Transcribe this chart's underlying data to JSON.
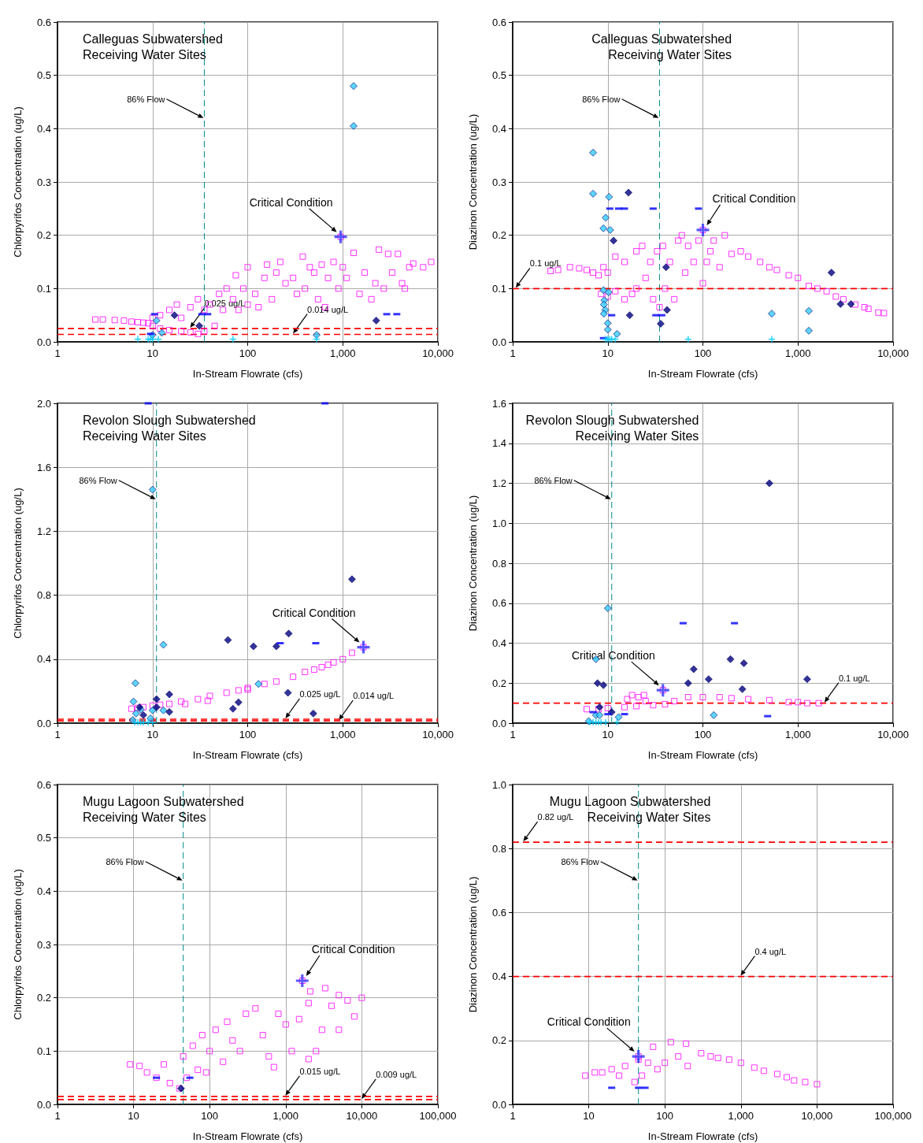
{
  "chart_data": [
    {
      "type": "scatter",
      "title": "Calleguas Subwatershed",
      "subtitle": "Receiving Water Sites",
      "xlabel": "In-Stream Flowrate (cfs)",
      "ylabel": "Chlorpyrifos Concentration (ug/L)",
      "log": "x",
      "xlim": [
        1,
        10000
      ],
      "xticks": [
        1,
        10,
        100,
        {
          "value": 1000,
          "label": "1,000"
        },
        {
          "value": 10000,
          "label": "10,000"
        }
      ],
      "ylim": [
        0,
        0.6
      ],
      "yticks": [
        {
          "value": 0,
          "label": "0.0"
        },
        0.1,
        0.2,
        0.3,
        0.4,
        0.5,
        0.6
      ],
      "grid": true,
      "series": [
        {
          "color": "#ff00ff",
          "marker": "square",
          "x": [
            2.5,
            3,
            4,
            5,
            6,
            7,
            8,
            9,
            10,
            10,
            12,
            12,
            15,
            15,
            18,
            20,
            20,
            25,
            25,
            30,
            30,
            35,
            35,
            40,
            45,
            50,
            55,
            60,
            70,
            75,
            80,
            90,
            100,
            100,
            120,
            130,
            150,
            160,
            180,
            200,
            220,
            250,
            300,
            330,
            380,
            400,
            450,
            500,
            550,
            600,
            650,
            700,
            800,
            900,
            950,
            1000,
            1100,
            1300,
            1500,
            1700,
            2000,
            2200,
            2400,
            2700,
            3000,
            3300,
            3800,
            4200,
            4500,
            5000,
            5500,
            7000,
            8500
          ],
          "values": [
            0.042,
            0.042,
            0.041,
            0.04,
            0.038,
            0.037,
            0.036,
            0.035,
            0.03,
            0.045,
            0.025,
            0.05,
            0.022,
            0.06,
            0.07,
            0.02,
            0.045,
            0.018,
            0.065,
            0.08,
            0.015,
            0.02,
            0.06,
            0.07,
            0.03,
            0.09,
            0.06,
            0.1,
            0.08,
            0.125,
            0.06,
            0.1,
            0.14,
            0.07,
            0.09,
            0.065,
            0.12,
            0.145,
            0.08,
            0.13,
            0.15,
            0.11,
            0.12,
            0.09,
            0.16,
            0.1,
            0.14,
            0.13,
            0.08,
            0.145,
            0.065,
            0.12,
            0.15,
            0.1,
            0.197,
            0.14,
            0.12,
            0.167,
            0.09,
            0.13,
            0.08,
            0.11,
            0.173,
            0.1,
            0.165,
            0.13,
            0.165,
            0.11,
            0.1,
            0.14,
            0.147,
            0.14,
            0.15
          ]
        },
        {
          "color": "#33ccff",
          "marker": "diamond",
          "x": [
            1300,
            1300,
            10,
            11,
            12.5,
            530
          ],
          "values": [
            0.48,
            0.405,
            0.013,
            0.04,
            0.017,
            0.013
          ]
        },
        {
          "color": "#000080",
          "marker": "diamond",
          "x": [
            17,
            31,
            2250
          ],
          "values": [
            0.05,
            0.03,
            0.04
          ]
        },
        {
          "color": "#0000ff",
          "x": [
            10.5,
            33,
            38,
            2900,
            3700,
            9.5
          ],
          "values": [
            0.052,
            0.052,
            0.052,
            0.052,
            0.052,
            0.015
          ]
        },
        {
          "color": "#00ccff",
          "marker": "cross",
          "x": [
            7,
            9,
            9.5,
            10,
            11.5,
            70,
            530
          ],
          "values": [
            0.005,
            0.005,
            0.005,
            0.005,
            0.005,
            0.005,
            0.005
          ]
        },
        {
          "color": "#3333ff",
          "marker": "cross",
          "x": [
            950
          ],
          "values": [
            0.197
          ]
        }
      ],
      "ref_lines": [
        {
          "axis": "x",
          "value": 35,
          "label": "86% Flow",
          "color": "#008b8b",
          "line_style": "dashed"
        },
        {
          "axis": "y",
          "value": 0.025,
          "label": "0.025 ug/L",
          "color": "#ff0000",
          "line_style": "dashed"
        },
        {
          "axis": "y",
          "value": 0.014,
          "label": "0.014 ug/L",
          "color": "#ff0000",
          "line_style": "dashed"
        }
      ],
      "annotations": [
        {
          "text": "Critical Condition",
          "x": 950,
          "y": 0.197
        }
      ]
    },
    {
      "type": "scatter",
      "title": "Calleguas Subwatershed",
      "subtitle": "Receiving Water Sites",
      "xlabel": "In-Stream Flowrate (cfs)",
      "ylabel": "Diazinon Concentration (ug/L)",
      "log": "x",
      "xlim": [
        1,
        10000
      ],
      "xticks": [
        1,
        10,
        100,
        {
          "value": 1000,
          "label": "1,000"
        },
        {
          "value": 10000,
          "label": "10,000"
        }
      ],
      "ylim": [
        0,
        0.6
      ],
      "yticks": [
        {
          "value": 0,
          "label": "0.0"
        },
        0.1,
        0.2,
        0.3,
        0.4,
        0.5,
        0.6
      ],
      "grid": true,
      "series": [
        {
          "color": "#ff00ff",
          "marker": "square",
          "x": [
            2.5,
            3,
            4,
            5,
            6,
            7,
            8,
            8.5,
            9,
            10,
            10,
            12,
            12,
            15,
            15,
            18,
            20,
            20,
            23,
            25,
            28,
            30,
            33,
            35,
            38,
            40,
            45,
            50,
            55,
            60,
            65,
            70,
            80,
            90,
            100,
            100,
            110,
            120,
            130,
            150,
            170,
            200,
            250,
            300,
            400,
            500,
            600,
            800,
            1000,
            1300,
            1600,
            2000,
            2500,
            3000,
            4000,
            5000,
            5500,
            7000,
            8000
          ],
          "values": [
            0.133,
            0.135,
            0.14,
            0.138,
            0.135,
            0.13,
            0.125,
            0.09,
            0.14,
            0.085,
            0.13,
            0.095,
            0.16,
            0.08,
            0.15,
            0.09,
            0.17,
            0.1,
            0.18,
            0.12,
            0.15,
            0.08,
            0.17,
            0.065,
            0.18,
            0.1,
            0.15,
            0.08,
            0.19,
            0.2,
            0.13,
            0.18,
            0.15,
            0.19,
            0.11,
            0.21,
            0.15,
            0.17,
            0.19,
            0.14,
            0.2,
            0.165,
            0.17,
            0.16,
            0.15,
            0.14,
            0.135,
            0.125,
            0.12,
            0.105,
            0.1,
            0.095,
            0.085,
            0.08,
            0.07,
            0.065,
            0.062,
            0.055,
            0.054
          ]
        },
        {
          "color": "#33ccff",
          "marker": "diamond",
          "x": [
            7,
            7,
            9.5,
            9,
            10.3,
            10.6,
            9,
            9.2,
            9.1,
            9.4,
            9.1,
            10,
            10,
            10.2,
            12.5,
            530,
            1300,
            1300
          ],
          "values": [
            0.355,
            0.278,
            0.233,
            0.213,
            0.272,
            0.21,
            0.097,
            0.078,
            0.07,
            0.06,
            0.053,
            0.035,
            0.023,
            0.093,
            0.015,
            0.053,
            0.058,
            0.021
          ]
        },
        {
          "color": "#000080",
          "marker": "diamond",
          "x": [
            16.5,
            11.5,
            17,
            41,
            42,
            36,
            2250,
            2800,
            3600
          ],
          "values": [
            0.28,
            0.19,
            0.05,
            0.14,
            0.06,
            0.034,
            0.13,
            0.071,
            0.071
          ]
        },
        {
          "color": "#0000ff",
          "x": [
            10.5,
            13,
            15,
            30,
            90,
            11,
            32,
            37,
            9
          ],
          "values": [
            0.25,
            0.25,
            0.25,
            0.25,
            0.25,
            0.05,
            0.05,
            0.05,
            0.007
          ]
        },
        {
          "color": "#00ccff",
          "marker": "cross",
          "x": [
            9.5,
            10,
            10.5,
            11,
            12,
            70,
            530
          ],
          "values": [
            0.005,
            0.005,
            0.005,
            0.005,
            0.005,
            0.005,
            0.005
          ]
        },
        {
          "color": "#3333ff",
          "marker": "cross",
          "x": [
            100
          ],
          "values": [
            0.21
          ]
        }
      ],
      "ref_lines": [
        {
          "axis": "x",
          "value": 35,
          "label": "86% Flow",
          "color": "#008b8b",
          "line_style": "dashed"
        },
        {
          "axis": "y",
          "value": 0.1,
          "label": "0.1 ug/L",
          "color": "#ff0000",
          "line_style": "dashed"
        }
      ],
      "annotations": [
        {
          "text": "Critical Condition",
          "x": 100,
          "y": 0.21
        }
      ]
    },
    {
      "type": "scatter",
      "title": "Revolon Slough Subwatershed",
      "subtitle": "Receiving Water Sites",
      "xlabel": "In-Stream Flowrate (cfs)",
      "ylabel": "Chlorpyrifos Concentration (ug/L)",
      "log": "x",
      "xlim": [
        1,
        10000
      ],
      "xticks": [
        1,
        10,
        100,
        {
          "value": 1000,
          "label": "1,000"
        },
        {
          "value": 10000,
          "label": "10,000"
        }
      ],
      "ylim": [
        0,
        2
      ],
      "yticks": [
        {
          "value": 0,
          "label": "0.0"
        },
        0.4,
        0.8,
        1.2,
        1.6,
        {
          "value": 2,
          "label": "2.0"
        }
      ],
      "grid": true,
      "series": [
        {
          "color": "#ff00ff",
          "marker": "square",
          "x": [
            6,
            7,
            8,
            10,
            12,
            15,
            20,
            22,
            30,
            38,
            40,
            60,
            80,
            100,
            100,
            150,
            200,
            300,
            400,
            500,
            600,
            700,
            800,
            1000,
            1250,
            1650
          ],
          "values": [
            0.09,
            0.095,
            0.1,
            0.11,
            0.115,
            0.12,
            0.135,
            0.12,
            0.15,
            0.14,
            0.17,
            0.19,
            0.205,
            0.22,
            0.21,
            0.245,
            0.26,
            0.29,
            0.32,
            0.335,
            0.35,
            0.365,
            0.38,
            0.4,
            0.44,
            0.475
          ]
        },
        {
          "color": "#33ccff",
          "marker": "diamond",
          "x": [
            10,
            13,
            6.6,
            6.3,
            6.7,
            7.5,
            10,
            13,
            130,
            6.2,
            9.5
          ],
          "values": [
            1.46,
            0.49,
            0.25,
            0.135,
            0.06,
            0.085,
            0.08,
            0.08,
            0.245,
            0.02,
            0.03
          ]
        },
        {
          "color": "#000080",
          "marker": "diamond",
          "x": [
            1250,
            62,
            270,
            115,
            200,
            15,
            11,
            7.3,
            11,
            8,
            15,
            70,
            80,
            265,
            490
          ],
          "values": [
            0.9,
            0.52,
            0.56,
            0.48,
            0.48,
            0.18,
            0.15,
            0.1,
            0.1,
            0.05,
            0.07,
            0.09,
            0.13,
            0.19,
            0.06
          ]
        },
        {
          "color": "#0000ff",
          "x": [
            9,
            650,
            220,
            520
          ],
          "values": [
            2,
            2,
            0.5,
            0.5
          ]
        },
        {
          "color": "#00ccff",
          "marker": "cross",
          "x": [
            6.5,
            7,
            7.5,
            8,
            9,
            10
          ],
          "values": [
            0.005,
            0.005,
            0.005,
            0.005,
            0.005,
            0.005
          ]
        },
        {
          "color": "#3333ff",
          "marker": "cross",
          "x": [
            1650
          ],
          "values": [
            0.475
          ]
        }
      ],
      "ref_lines": [
        {
          "axis": "x",
          "value": 11,
          "label": "86% Flow",
          "color": "#008b8b",
          "line_style": "dashed"
        },
        {
          "axis": "y",
          "value": 0.025,
          "label": "0.025 ug/L",
          "color": "#ff0000",
          "line_style": "dashed"
        },
        {
          "axis": "y",
          "value": 0.014,
          "label": "0.014 ug/L",
          "color": "#ff0000",
          "line_style": "dashed"
        }
      ],
      "annotations": [
        {
          "text": "Critical Condition",
          "x": 1650,
          "y": 0.475
        }
      ]
    },
    {
      "type": "scatter",
      "title": "Revolon Slough Subwatershed",
      "subtitle": "Receiving Water Sites",
      "xlabel": "In-Stream Flowrate (cfs)",
      "ylabel": "Diazinon Concentration (ug/L)",
      "log": "x",
      "xlim": [
        1,
        10000
      ],
      "xticks": [
        1,
        10,
        100,
        {
          "value": 1000,
          "label": "1,000"
        },
        {
          "value": 10000,
          "label": "10,000"
        }
      ],
      "ylim": [
        0,
        1.6
      ],
      "yticks": [
        {
          "value": 0,
          "label": "0.0"
        },
        0.2,
        0.4,
        0.6,
        0.8,
        {
          "value": 1,
          "label": "1.0"
        },
        1.2,
        1.4,
        1.6
      ],
      "grid": true,
      "series": [
        {
          "color": "#ff00ff",
          "marker": "square",
          "x": [
            6,
            8,
            10,
            15,
            16,
            18,
            20,
            21,
            24,
            25,
            30,
            38,
            40,
            50,
            70,
            100,
            150,
            200,
            300,
            500,
            800,
            1000,
            1250,
            1650
          ],
          "values": [
            0.07,
            0.07,
            0.075,
            0.08,
            0.12,
            0.14,
            0.085,
            0.13,
            0.14,
            0.11,
            0.09,
            0.165,
            0.095,
            0.11,
            0.13,
            0.13,
            0.13,
            0.125,
            0.12,
            0.115,
            0.105,
            0.105,
            0.1,
            0.1
          ]
        },
        {
          "color": "#33ccff",
          "marker": "diamond",
          "x": [
            10,
            7.5,
            7.5,
            8.2,
            13,
            130,
            6.3
          ],
          "values": [
            0.575,
            0.32,
            0.04,
            0.04,
            0.03,
            0.04,
            0.01
          ]
        },
        {
          "color": "#000080",
          "marker": "diamond",
          "x": [
            500,
            7.8,
            9,
            8.2,
            11,
            70,
            80,
            115,
            195,
            270,
            260,
            1250
          ],
          "values": [
            1.2,
            0.2,
            0.19,
            0.08,
            0.055,
            0.2,
            0.27,
            0.22,
            0.32,
            0.3,
            0.17,
            0.22
          ]
        },
        {
          "color": "#0000ff",
          "x": [
            62,
            215,
            480,
            7,
            10,
            15
          ],
          "values": [
            0.5,
            0.5,
            0.035,
            0.055,
            0.045,
            0.045
          ]
        },
        {
          "color": "#00ccff",
          "marker": "cross",
          "x": [
            6.5,
            7,
            7.5,
            8,
            8.5,
            9.5,
            12.5
          ],
          "values": [
            0.005,
            0.005,
            0.005,
            0.005,
            0.005,
            0.005,
            0.005
          ]
        },
        {
          "color": "#3333ff",
          "marker": "cross",
          "x": [
            38
          ],
          "values": [
            0.165
          ]
        }
      ],
      "ref_lines": [
        {
          "axis": "x",
          "value": 11,
          "label": "86% Flow",
          "color": "#008b8b",
          "line_style": "dashed"
        },
        {
          "axis": "y",
          "value": 0.1,
          "label": "0.1 ug/L",
          "color": "#ff0000",
          "line_style": "dashed"
        }
      ],
      "annotations": [
        {
          "text": "Critical Condition",
          "x": 38,
          "y": 0.165
        }
      ]
    },
    {
      "type": "scatter",
      "title": "Mugu Lagoon Subwatershed",
      "subtitle": "Receiving Water Sites",
      "xlabel": "In-Stream Flowrate (cfs)",
      "ylabel": "Chlorpyrifos Concentration (ug/L)",
      "log": "x",
      "xlim": [
        1,
        100000
      ],
      "xticks": [
        1,
        10,
        100,
        {
          "value": 1000,
          "label": "1,000"
        },
        {
          "value": 10000,
          "label": "10,000"
        },
        {
          "value": 100000,
          "label": "100,000"
        }
      ],
      "ylim": [
        0,
        0.6
      ],
      "yticks": [
        {
          "value": 0,
          "label": "0.0"
        },
        0.1,
        0.2,
        0.3,
        0.4,
        0.5,
        0.6
      ],
      "grid": true,
      "series": [
        {
          "color": "#ff00ff",
          "marker": "square",
          "x": [
            9,
            12,
            15,
            20,
            25,
            30,
            40,
            45,
            50,
            60,
            70,
            80,
            90,
            100,
            120,
            150,
            170,
            200,
            250,
            300,
            400,
            500,
            600,
            700,
            800,
            1000,
            1200,
            1500,
            1650,
            2000,
            2000,
            2100,
            2500,
            3000,
            3300,
            4000,
            5000,
            5000,
            6500,
            8000,
            10000
          ],
          "values": [
            0.075,
            0.072,
            0.06,
            0.05,
            0.075,
            0.04,
            0.03,
            0.09,
            0.05,
            0.11,
            0.065,
            0.13,
            0.06,
            0.1,
            0.14,
            0.08,
            0.155,
            0.12,
            0.1,
            0.17,
            0.18,
            0.13,
            0.09,
            0.07,
            0.17,
            0.15,
            0.1,
            0.16,
            0.232,
            0.085,
            0.19,
            0.212,
            0.1,
            0.14,
            0.218,
            0.185,
            0.205,
            0.14,
            0.195,
            0.165,
            0.2
          ]
        },
        {
          "color": "#000080",
          "marker": "diamond",
          "x": [
            42
          ],
          "values": [
            0.03
          ]
        },
        {
          "color": "#0000ff",
          "x": [
            20,
            55
          ],
          "values": [
            0.05,
            0.05
          ]
        },
        {
          "color": "#3333ff",
          "marker": "cross",
          "x": [
            1650
          ],
          "values": [
            0.232
          ]
        }
      ],
      "ref_lines": [
        {
          "axis": "x",
          "value": 45,
          "label": "86% Flow",
          "color": "#008b8b",
          "line_style": "dashed"
        },
        {
          "axis": "y",
          "value": 0.015,
          "label": "0.015 ug/L",
          "color": "#ff0000",
          "line_style": "dashed"
        },
        {
          "axis": "y",
          "value": 0.009,
          "label": "0.009 ug/L",
          "color": "#ff0000",
          "line_style": "dashed"
        }
      ],
      "annotations": [
        {
          "text": "Critical Condition",
          "x": 1650,
          "y": 0.232
        }
      ]
    },
    {
      "type": "scatter",
      "title": "Mugu Lagoon Subwatershed",
      "subtitle": "Receiving Water Sites",
      "xlabel": "In-Stream Flowrate (cfs)",
      "ylabel": "Diazinon Concentration (ug/L)",
      "log": "x",
      "xlim": [
        1,
        100000
      ],
      "xticks": [
        1,
        10,
        100,
        {
          "value": 1000,
          "label": "1,000"
        },
        {
          "value": 10000,
          "label": "10,000"
        },
        {
          "value": 100000,
          "label": "100,000"
        }
      ],
      "ylim": [
        0,
        1
      ],
      "yticks": [
        {
          "value": 0,
          "label": "0.0"
        },
        0.2,
        0.4,
        0.6,
        0.8,
        {
          "value": 1,
          "label": "1.0"
        }
      ],
      "grid": true,
      "series": [
        {
          "color": "#ff00ff",
          "marker": "square",
          "x": [
            9,
            12,
            15,
            20,
            25,
            30,
            40,
            45,
            45,
            50,
            60,
            70,
            80,
            100,
            120,
            150,
            190,
            200,
            300,
            400,
            500,
            700,
            1000,
            1500,
            2000,
            3000,
            4000,
            5000,
            7000,
            10000
          ],
          "values": [
            0.09,
            0.1,
            0.1,
            0.11,
            0.09,
            0.12,
            0.07,
            0.14,
            0.15,
            0.09,
            0.13,
            0.18,
            0.11,
            0.13,
            0.195,
            0.15,
            0.19,
            0.12,
            0.16,
            0.15,
            0.145,
            0.14,
            0.13,
            0.115,
            0.105,
            0.095,
            0.085,
            0.075,
            0.07,
            0.063
          ]
        },
        {
          "color": "#0000ff",
          "x": [
            20,
            45,
            55
          ],
          "values": [
            0.052,
            0.052,
            0.052
          ]
        },
        {
          "color": "#3333ff",
          "marker": "cross",
          "x": [
            45
          ],
          "values": [
            0.15
          ]
        }
      ],
      "ref_lines": [
        {
          "axis": "x",
          "value": 45,
          "label": "86% Flow",
          "color": "#008b8b",
          "line_style": "dashed"
        },
        {
          "axis": "y",
          "value": 0.82,
          "label": "0.82 ug/L",
          "color": "#ff0000",
          "line_style": "dashed"
        },
        {
          "axis": "y",
          "value": 0.4,
          "label": "0.4 ug/L",
          "color": "#ff0000",
          "line_style": "dashed"
        }
      ],
      "annotations": [
        {
          "text": "Critical Condition",
          "x": 45,
          "y": 0.15
        }
      ]
    }
  ]
}
